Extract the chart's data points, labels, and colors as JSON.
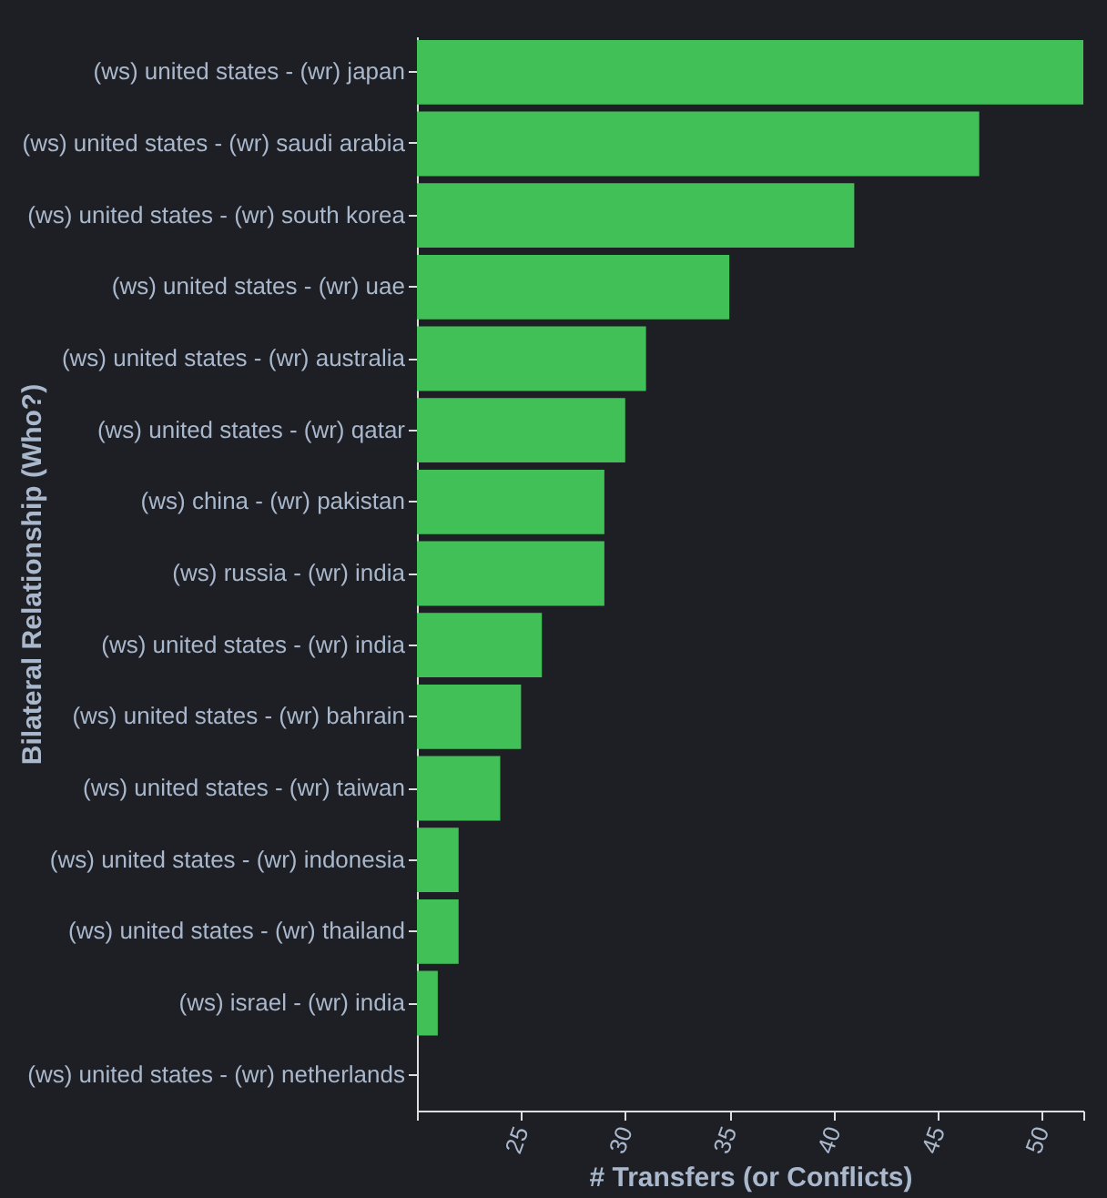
{
  "chart_data": {
    "type": "bar",
    "orientation": "horizontal",
    "xlabel": "# Transfers (or Conflicts)",
    "ylabel": "Bilateral Relationship (Who?)",
    "categories": [
      "(ws) united states - (wr) japan",
      "(ws) united states - (wr) saudi arabia",
      "(ws) united states - (wr) south korea",
      "(ws) united states - (wr) uae",
      "(ws) united states - (wr) australia",
      "(ws) united states - (wr) qatar",
      "(ws) china - (wr) pakistan",
      "(ws) russia - (wr) india",
      "(ws) united states - (wr) india",
      "(ws) united states - (wr) bahrain",
      "(ws) united states - (wr) taiwan",
      "(ws) united states - (wr) indonesia",
      "(ws) united states - (wr) thailand",
      "(ws) israel - (wr) india",
      "(ws) united states - (wr) netherlands"
    ],
    "values": [
      52,
      47,
      41,
      35,
      31,
      30,
      29,
      29,
      26,
      25,
      24,
      22,
      22,
      21,
      20
    ],
    "color": "#40c057",
    "xlim": [
      20,
      52
    ],
    "xticks": [
      {
        "value": 20,
        "label": null
      },
      25,
      30,
      35,
      40,
      45,
      50,
      {
        "value": 52,
        "label": null
      }
    ],
    "grid": false
  }
}
